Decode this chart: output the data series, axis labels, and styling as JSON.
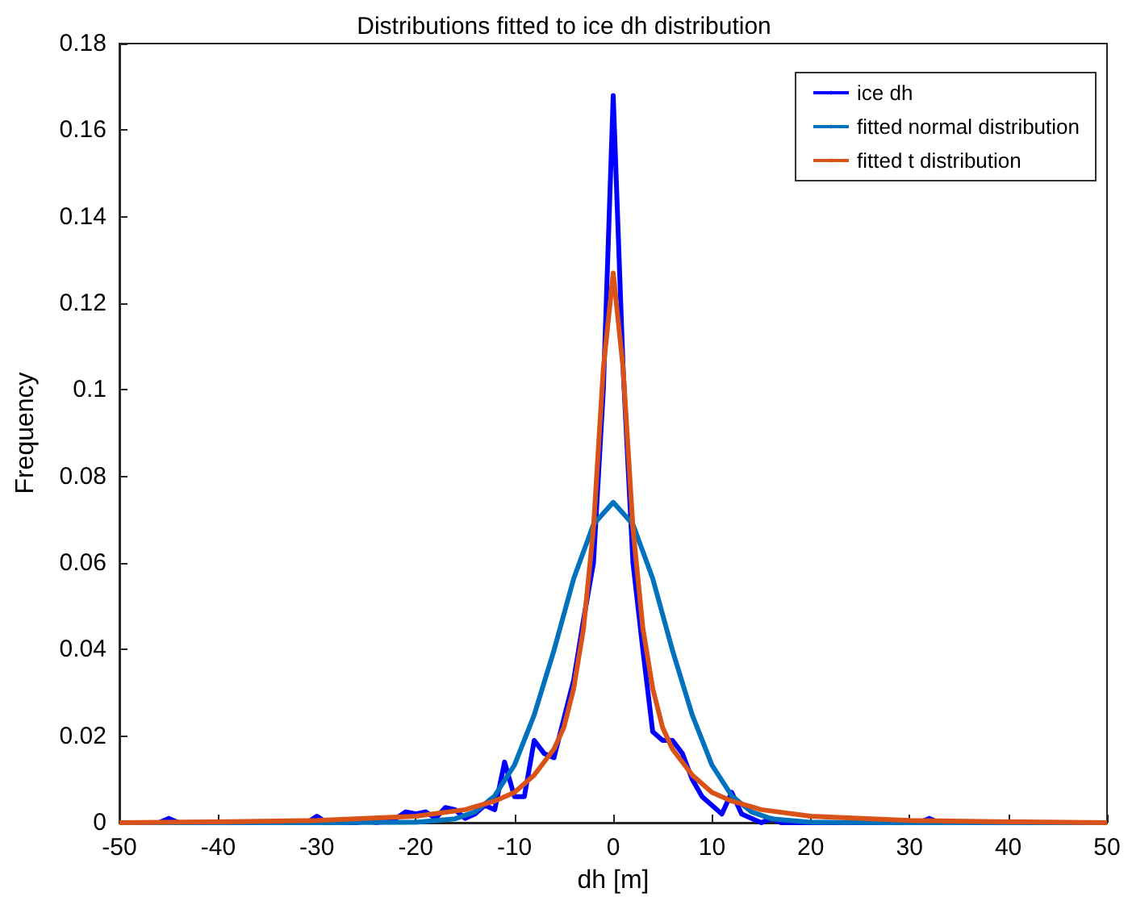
{
  "chart_data": {
    "type": "line",
    "title": "Distributions fitted to ice dh distribution",
    "xlabel": "dh [m]",
    "ylabel": "Frequency",
    "xlim": [
      -50,
      50
    ],
    "xticks": [
      -50,
      -40,
      -30,
      -20,
      -10,
      0,
      10,
      20,
      30,
      40,
      50
    ],
    "ylim": [
      0,
      0.18
    ],
    "yticks": [
      0,
      0.02,
      0.04,
      0.06,
      0.08,
      0.1,
      0.12,
      0.14,
      0.16,
      0.18
    ],
    "grid": false,
    "legend": "top right",
    "marker": "none",
    "line_style": "solid",
    "series": [
      {
        "name": "ice dh",
        "color": "#0000ff",
        "x": [
          -50,
          -46,
          -45,
          -44,
          -31,
          -30,
          -29,
          -26,
          -25,
          -24,
          -22,
          -21,
          -20,
          -19,
          -18,
          -17,
          -16,
          -15,
          -14,
          -13,
          -12,
          -11,
          -10,
          -9,
          -8,
          -7,
          -6,
          -5,
          -4,
          -3,
          -2,
          -1,
          0,
          1,
          2,
          3,
          4,
          5,
          6,
          7,
          8,
          9,
          10,
          11,
          12,
          13,
          14,
          15,
          16,
          17,
          31,
          32,
          33,
          50
        ],
        "values": [
          0,
          0,
          0.001,
          0,
          0,
          0.0015,
          0,
          0,
          0.0005,
          0,
          0.001,
          0.0025,
          0.002,
          0.0025,
          0.001,
          0.0035,
          0.003,
          0.001,
          0.002,
          0.004,
          0.003,
          0.014,
          0.006,
          0.006,
          0.019,
          0.016,
          0.015,
          0.024,
          0.033,
          0.047,
          0.06,
          0.1,
          0.168,
          0.105,
          0.06,
          0.04,
          0.021,
          0.019,
          0.019,
          0.016,
          0.01,
          0.006,
          0.004,
          0.002,
          0.007,
          0.002,
          0.001,
          0,
          0.001,
          0,
          0,
          0.001,
          0,
          0
        ]
      },
      {
        "name": "fitted normal distribution",
        "color": "#0072bd",
        "x": [
          -50,
          -30,
          -20,
          -16,
          -14,
          -12,
          -10,
          -8,
          -6,
          -4,
          -2,
          0,
          2,
          4,
          6,
          8,
          10,
          12,
          14,
          16,
          20,
          30,
          50
        ],
        "values": [
          0,
          0,
          0.0001,
          0.0009,
          0.0025,
          0.0062,
          0.0133,
          0.0249,
          0.0398,
          0.0564,
          0.0689,
          0.074,
          0.0689,
          0.0564,
          0.0398,
          0.0249,
          0.0133,
          0.0062,
          0.0025,
          0.0009,
          0.0001,
          0,
          0
        ]
      },
      {
        "name": "fitted t distribution",
        "color": "#d95319",
        "x": [
          -50,
          -40,
          -30,
          -20,
          -15,
          -12,
          -10,
          -8,
          -6,
          -5,
          -4,
          -3,
          -2,
          -1,
          0,
          1,
          2,
          3,
          4,
          5,
          6,
          8,
          10,
          12,
          15,
          20,
          30,
          40,
          50
        ],
        "values": [
          0,
          0.0002,
          0.0005,
          0.0015,
          0.003,
          0.005,
          0.007,
          0.011,
          0.017,
          0.022,
          0.031,
          0.045,
          0.068,
          0.105,
          0.127,
          0.105,
          0.068,
          0.045,
          0.031,
          0.022,
          0.017,
          0.011,
          0.007,
          0.005,
          0.003,
          0.0015,
          0.0005,
          0.0002,
          0
        ]
      }
    ]
  }
}
